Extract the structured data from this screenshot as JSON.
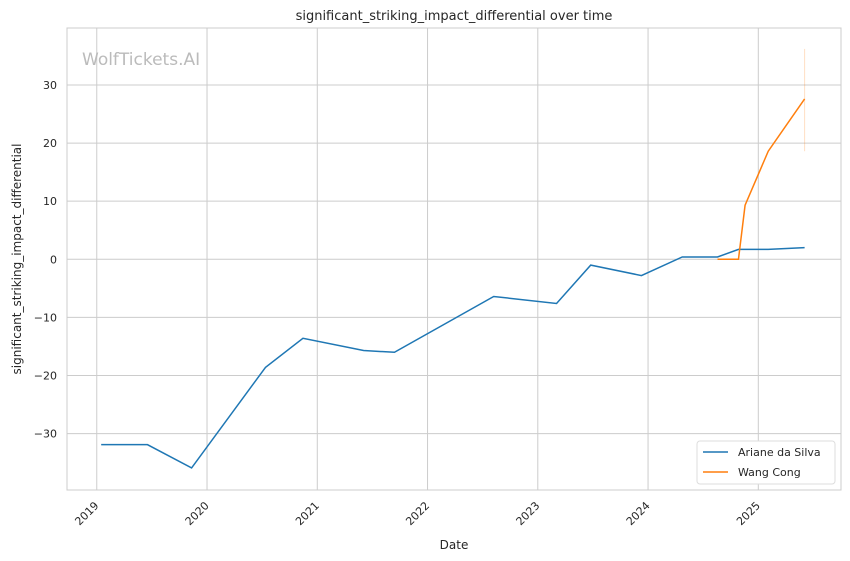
{
  "chart_data": {
    "type": "line",
    "title": "significant_striking_impact_differential over time",
    "xlabel": "Date",
    "ylabel": "significant_striking_impact_differential",
    "watermark": "WolfTickets.AI",
    "xlim": [
      2018.73,
      2025.75
    ],
    "ylim": [
      -39.7,
      39.8
    ],
    "xticks": [
      2019,
      2020,
      2021,
      2022,
      2023,
      2024,
      2025
    ],
    "xtick_labels": [
      "2019",
      "2020",
      "2021",
      "2022",
      "2023",
      "2024",
      "2025"
    ],
    "yticks": [
      -30,
      -20,
      -10,
      0,
      10,
      20,
      30
    ],
    "ytick_labels": [
      "−30",
      "−20",
      "−10",
      "0",
      "10",
      "20",
      "30"
    ],
    "grid": true,
    "legend_position": "bottom-right",
    "series": [
      {
        "name": "Ariane da Silva",
        "color": "#1f77b4",
        "x": [
          2019.04,
          2019.46,
          2019.86,
          2020.53,
          2020.87,
          2021.42,
          2021.7,
          2022.6,
          2023.17,
          2023.48,
          2023.94,
          2024.31,
          2024.63,
          2024.82,
          2025.09,
          2025.42
        ],
        "y": [
          -31.9,
          -31.9,
          -35.9,
          -18.6,
          -13.6,
          -15.7,
          -16.0,
          -6.4,
          -7.6,
          -1.0,
          -2.8,
          0.4,
          0.4,
          1.7,
          1.7,
          2.0
        ]
      },
      {
        "name": "Wang Cong",
        "color": "#ff7f0e",
        "x": [
          2024.63,
          2024.82,
          2024.88,
          2025.09,
          2025.42
        ],
        "y": [
          0.0,
          0.0,
          9.3,
          18.6,
          27.6
        ],
        "error_band": {
          "x": 2025.42,
          "low": 18.6,
          "high": 36.2
        }
      }
    ]
  }
}
